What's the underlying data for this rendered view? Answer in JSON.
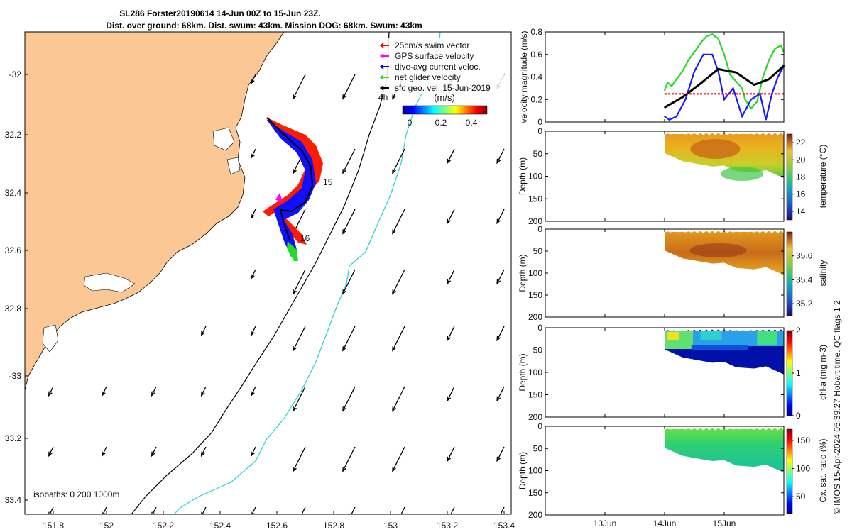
{
  "title": {
    "line1": "SL286 Forster20190614 14-Jun 00Z to 15-Jun 23Z.",
    "line2": "Dist. over ground: 68km. Dist. swum: 43km. Mission DOG: 68km. Swum: 43km"
  },
  "footer": "© IMOS 15-Apr-2024 05:39:27 Hobart time. QC flags 1  2",
  "map": {
    "lon_ticks": [
      "151.8",
      "152",
      "152.2",
      "152.4",
      "152.6",
      "152.8",
      "153",
      "153.2",
      "153.4"
    ],
    "lat_ticks": [
      "-32",
      "32.2",
      "32.4",
      "32.6",
      "32.8",
      "-33",
      "33.2",
      "33.4"
    ],
    "legend": [
      "25cm/s swim vector",
      "GPS surface velocity",
      "dive-avg current veloc.",
      "net glider velocity",
      "sfc geo. vel. 15-Jun-2019"
    ],
    "legend_colors": [
      "#ff0000",
      "#ff00ff",
      "#0000ff",
      "#22dd22",
      "#000000"
    ],
    "colorbar_title": "(m/s)",
    "colorbar_ticks": [
      "0",
      "0.2",
      "0.4"
    ],
    "track_labels": [
      "4h",
      "15",
      "16"
    ],
    "isobaths_label": "isobaths: 0   200  1000m"
  },
  "chart_data": [
    {
      "type": "line",
      "ylabel": "velocity magnitude (m/s)",
      "y_ticks": [
        "0",
        "0.2",
        "0.4",
        "0.6",
        "0.8"
      ],
      "ylim": [
        0,
        0.8
      ],
      "xlim": [
        0,
        4
      ],
      "series": [
        {
          "color": "#22dd22",
          "x": [
            2.0,
            2.05,
            2.12,
            2.2,
            2.3,
            2.4,
            2.5,
            2.6,
            2.7,
            2.8,
            2.9,
            3.0,
            3.1,
            3.2,
            3.3,
            3.35,
            3.45,
            3.55,
            3.65,
            3.75,
            3.85,
            3.95,
            4.0
          ],
          "values": [
            0.28,
            0.35,
            0.32,
            0.38,
            0.45,
            0.55,
            0.62,
            0.7,
            0.76,
            0.78,
            0.74,
            0.6,
            0.42,
            0.36,
            0.3,
            0.2,
            0.12,
            0.18,
            0.4,
            0.55,
            0.65,
            0.68,
            0.62
          ]
        },
        {
          "color": "#1a1aff",
          "x": [
            2.0,
            2.08,
            2.2,
            2.35,
            2.5,
            2.65,
            2.8,
            2.9,
            3.0,
            3.15,
            3.3,
            3.45,
            3.6,
            3.7,
            3.8,
            3.9,
            4.0
          ],
          "values": [
            0.05,
            0.02,
            0.05,
            0.2,
            0.45,
            0.6,
            0.6,
            0.45,
            0.2,
            0.3,
            0.05,
            0.2,
            0.25,
            0.02,
            0.25,
            0.4,
            0.5
          ]
        },
        {
          "color": "#000000",
          "x": [
            2.0,
            2.3,
            2.6,
            2.9,
            3.2,
            3.5,
            3.75,
            4.0
          ],
          "values": [
            0.13,
            0.22,
            0.34,
            0.47,
            0.44,
            0.33,
            0.38,
            0.5
          ]
        },
        {
          "color": "#ff0000",
          "x": [
            2.0,
            4.0
          ],
          "values": [
            0.25,
            0.25
          ],
          "dashed": true
        }
      ]
    },
    {
      "type": "heatmap",
      "ylabel": "Depth (m)",
      "cbar_label": "temperature (°C)",
      "cbar_ticks": [
        "22",
        "20",
        "18",
        "16",
        "14"
      ],
      "clim": [
        13,
        23
      ],
      "colormap": "parula"
    },
    {
      "type": "heatmap",
      "ylabel": "Depth (m)",
      "cbar_label": "salinity",
      "cbar_ticks": [
        "35.6",
        "35.4",
        "35.2"
      ],
      "clim": [
        35.1,
        35.8
      ],
      "colormap": "parula"
    },
    {
      "type": "heatmap",
      "ylabel": "Depth (m)",
      "cbar_label": "chl-a (mg m-3)",
      "cbar_ticks": [
        "2",
        "1",
        "0"
      ],
      "clim": [
        0,
        2
      ],
      "colormap": "jet"
    },
    {
      "type": "heatmap",
      "ylabel": "Depth (m)",
      "cbar_label": "Ox. sat. ratio (%)",
      "cbar_ticks": [
        "150",
        "100",
        "50"
      ],
      "clim": [
        20,
        170
      ],
      "colormap": "jet"
    }
  ],
  "depth_ticks": [
    "0",
    "50",
    "100",
    "150",
    "200"
  ],
  "date_ticks": [
    "13Jun",
    "14Jun",
    "15Jun"
  ]
}
